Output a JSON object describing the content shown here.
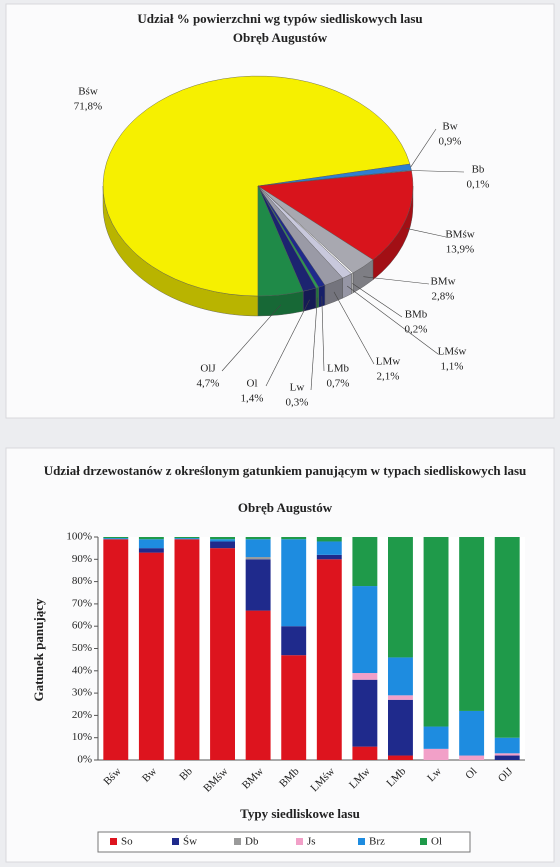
{
  "chart_data": [
    {
      "type": "pie",
      "title": "Udział % powierzchni wg typów siedliskowych lasu",
      "subtitle": "Obręb Augustów",
      "categories": [
        "Bśw",
        "Bw",
        "Bb",
        "BMśw",
        "BMw",
        "BMb",
        "LMśw",
        "LMw",
        "LMb",
        "Lw",
        "Ol",
        "OlJ"
      ],
      "values": [
        71.8,
        0.9,
        0.1,
        13.9,
        2.8,
        0.2,
        1.1,
        2.1,
        0.7,
        0.3,
        1.4,
        4.7
      ],
      "value_labels": [
        "71,8%",
        "0,9%",
        "0,1%",
        "13,9%",
        "2,8%",
        "0,2%",
        "1,1%",
        "2,1%",
        "0,7%",
        "0,3%",
        "1,4%",
        "4,7%"
      ],
      "colors": [
        "#f6f000",
        "#2f7fd0",
        "#7fb0e0",
        "#d8141c",
        "#a8a8b0",
        "#ffffff",
        "#c8c8dc",
        "#9a9aa6",
        "#1f2a8c",
        "#2a9a50",
        "#1c2470",
        "#1f8a48"
      ]
    },
    {
      "type": "stacked_bar",
      "title": "Udział drzewostanów z określonym gatunkiem panującym w typach siedliskowych lasu",
      "subtitle": "Obręb Augustów",
      "y_label": "Gatunek panujący",
      "x_label": "Typy siedliskowe lasu",
      "categories": [
        "Bśw",
        "Bw",
        "Bb",
        "BMśw",
        "BMw",
        "BMb",
        "LMśw",
        "LMw",
        "LMb",
        "Lw",
        "Ol",
        "OlJ"
      ],
      "series": [
        {
          "name": "So",
          "color": "#dd141e",
          "values": [
            99,
            93,
            99,
            95,
            67,
            47,
            90,
            6,
            2,
            0,
            0,
            0
          ]
        },
        {
          "name": "Św",
          "color": "#1f2a8c",
          "values": [
            0,
            2,
            0,
            3,
            23,
            13,
            2,
            30,
            25,
            0,
            0,
            2
          ]
        },
        {
          "name": "Db",
          "color": "#9a9a9a",
          "values": [
            0,
            0,
            0,
            0,
            1,
            0,
            0,
            0,
            0,
            0,
            0,
            0
          ]
        },
        {
          "name": "Js",
          "color": "#f2a0c8",
          "values": [
            0,
            0,
            0,
            0,
            0,
            0,
            0,
            3,
            2,
            5,
            2,
            1
          ]
        },
        {
          "name": "Brz",
          "color": "#1e8ce0",
          "values": [
            0.5,
            4,
            0.5,
            1,
            8,
            39,
            6,
            39,
            17,
            10,
            20,
            7
          ]
        },
        {
          "name": "Ol",
          "color": "#1f9a4a",
          "values": [
            0.5,
            1,
            0.5,
            1,
            1,
            1,
            2,
            22,
            54,
            85,
            78,
            90
          ]
        }
      ],
      "ylim": [
        0,
        100
      ],
      "yticks": [
        {
          "value": 0,
          "label": "0%"
        },
        {
          "value": 10,
          "label": "10%"
        },
        {
          "value": 20,
          "label": "20%"
        },
        {
          "value": 30,
          "label": "30%"
        },
        {
          "value": 40,
          "label": "40%"
        },
        {
          "value": 50,
          "label": "50%"
        },
        {
          "value": 60,
          "label": "60%"
        },
        {
          "value": 70,
          "label": "70%"
        },
        {
          "value": 80,
          "label": "80%"
        },
        {
          "value": 90,
          "label": "90%"
        },
        {
          "value": 100,
          "label": "100%"
        }
      ]
    }
  ]
}
